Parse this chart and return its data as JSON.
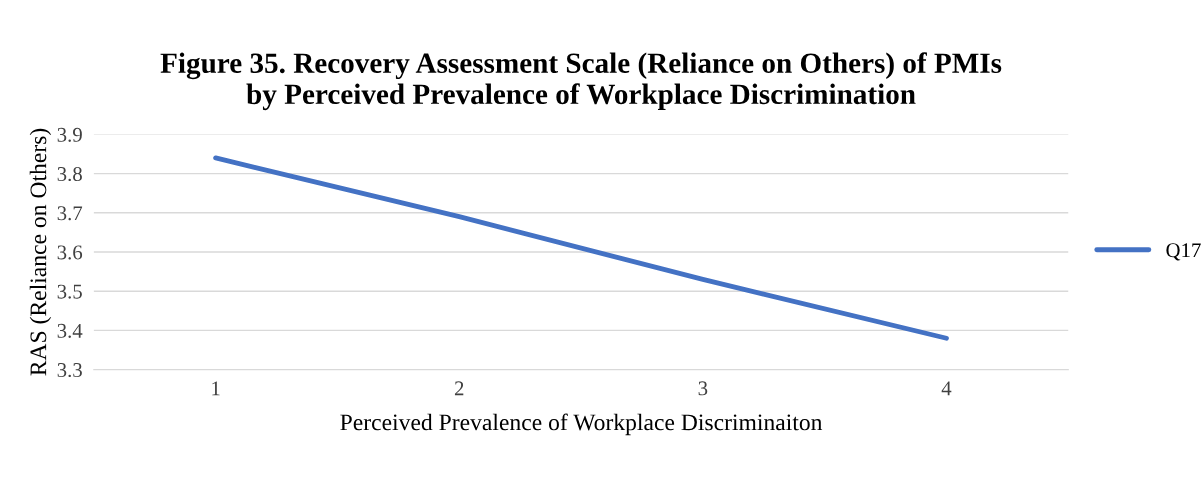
{
  "chart_data": {
    "type": "line",
    "title": "Figure 35. Recovery Assessment Scale (Reliance on Others) of PMIs\nby Perceived Prevalence of Workplace Discrimination",
    "xlabel": "Perceived Prevalence of Workplace Discriminaiton",
    "ylabel": "RAS (Reliance on Others)",
    "categories": [
      "1",
      "2",
      "3",
      "4"
    ],
    "series": [
      {
        "name": "Q17",
        "color": "#4472c4",
        "values": [
          3.84,
          3.69,
          3.53,
          3.38
        ]
      }
    ],
    "ylim": [
      3.3,
      3.9
    ],
    "yticks": [
      {
        "value": 3.3,
        "label": "3.3"
      },
      {
        "value": 3.4,
        "label": "3.4"
      },
      {
        "value": 3.5,
        "label": "3.5"
      },
      {
        "value": 3.6,
        "label": "3.6"
      },
      {
        "value": 3.7,
        "label": "3.7"
      },
      {
        "value": 3.8,
        "label": "3.8"
      },
      {
        "value": 3.9,
        "label": "3.9"
      }
    ],
    "grid": "y",
    "legend": "right",
    "marker": "none",
    "line_style": "solid"
  }
}
